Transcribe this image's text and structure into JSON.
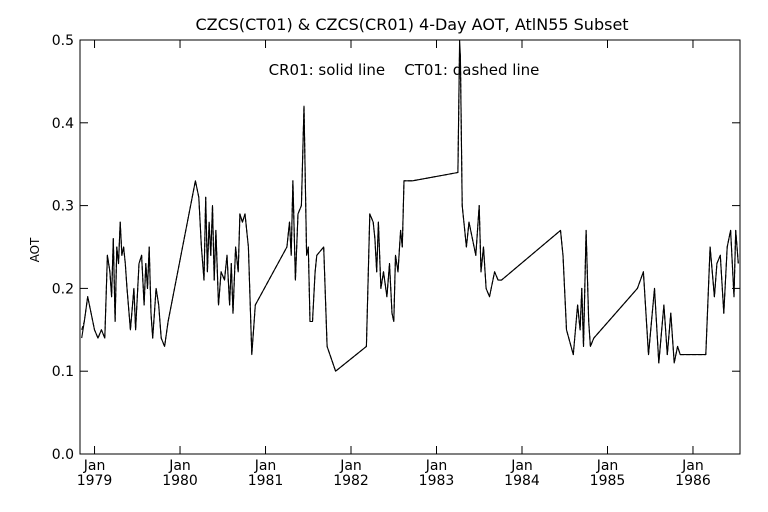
{
  "chart_data": {
    "type": "line",
    "title": "CZCS(CT01) & CZCS(CR01) 4-Day AOT, AtlN55 Subset",
    "annotation": "CR01: solid line    CT01: dashed line",
    "xlabel": "",
    "ylabel": "AOT",
    "xlim": [
      1978.83,
      1986.55
    ],
    "ylim": [
      0.0,
      0.5
    ],
    "yticks": [
      {
        "value": 0.0,
        "label": "0.0"
      },
      {
        "value": 0.1,
        "label": "0.1"
      },
      {
        "value": 0.2,
        "label": "0.2"
      },
      {
        "value": 0.3,
        "label": "0.3"
      },
      {
        "value": 0.4,
        "label": "0.4"
      },
      {
        "value": 0.5,
        "label": "0.5"
      }
    ],
    "xticks": [
      {
        "value": 1979.0,
        "month": "Jan",
        "year": "1979"
      },
      {
        "value": 1980.0,
        "month": "Jan",
        "year": "1980"
      },
      {
        "value": 1981.0,
        "month": "Jan",
        "year": "1981"
      },
      {
        "value": 1982.0,
        "month": "Jan",
        "year": "1982"
      },
      {
        "value": 1983.0,
        "month": "Jan",
        "year": "1983"
      },
      {
        "value": 1984.0,
        "month": "Jan",
        "year": "1984"
      },
      {
        "value": 1985.0,
        "month": "Jan",
        "year": "1985"
      },
      {
        "value": 1986.0,
        "month": "Jan",
        "year": "1986"
      }
    ],
    "grid": false,
    "colors": {
      "line": "#000000",
      "axes": "#000000",
      "background": "#ffffff"
    },
    "series": [
      {
        "name": "CR01",
        "style": "solid",
        "x": [
          1978.85,
          1978.88,
          1978.92,
          1978.96,
          1979.0,
          1979.04,
          1979.08,
          1979.12,
          1979.15,
          1979.18,
          1979.2,
          1979.22,
          1979.24,
          1979.26,
          1979.28,
          1979.3,
          1979.32,
          1979.34,
          1979.36,
          1979.38,
          1979.42,
          1979.46,
          1979.48,
          1979.52,
          1979.55,
          1979.58,
          1979.6,
          1979.62,
          1979.64,
          1979.66,
          1979.68,
          1979.72,
          1979.75,
          1979.78,
          1979.82,
          1979.86,
          1980.18,
          1980.22,
          1980.25,
          1980.28,
          1980.3,
          1980.32,
          1980.34,
          1980.36,
          1980.38,
          1980.4,
          1980.42,
          1980.45,
          1980.48,
          1980.52,
          1980.55,
          1980.58,
          1980.6,
          1980.62,
          1980.65,
          1980.68,
          1980.7,
          1980.73,
          1980.76,
          1980.8,
          1980.84,
          1980.88,
          1981.25,
          1981.28,
          1981.3,
          1981.32,
          1981.35,
          1981.38,
          1981.42,
          1981.45,
          1981.48,
          1981.5,
          1981.52,
          1981.55,
          1981.58,
          1981.6,
          1981.68,
          1981.72,
          1981.82,
          1982.18,
          1982.22,
          1982.26,
          1982.28,
          1982.3,
          1982.32,
          1982.35,
          1982.38,
          1982.42,
          1982.45,
          1982.48,
          1982.5,
          1982.52,
          1982.55,
          1982.58,
          1982.6,
          1982.62,
          1982.64,
          1982.67,
          1982.7,
          1982.72,
          1983.25,
          1983.27,
          1983.28,
          1983.3,
          1983.32,
          1983.35,
          1983.38,
          1983.42,
          1983.46,
          1983.5,
          1983.52,
          1983.55,
          1983.58,
          1983.62,
          1983.68,
          1983.72,
          1983.76,
          1984.45,
          1984.48,
          1984.52,
          1984.6,
          1984.65,
          1984.68,
          1984.7,
          1984.72,
          1984.75,
          1984.78,
          1984.8,
          1984.84,
          1985.35,
          1985.42,
          1985.48,
          1985.55,
          1985.6,
          1985.66,
          1985.7,
          1985.74,
          1985.78,
          1985.82,
          1985.85,
          1986.15,
          1986.2,
          1986.25,
          1986.28,
          1986.32,
          1986.36,
          1986.4,
          1986.44,
          1986.48,
          1986.5,
          1986.53
        ],
        "values": [
          0.14,
          0.16,
          0.19,
          0.17,
          0.15,
          0.14,
          0.15,
          0.14,
          0.24,
          0.22,
          0.19,
          0.26,
          0.16,
          0.25,
          0.23,
          0.28,
          0.24,
          0.25,
          0.23,
          0.2,
          0.15,
          0.2,
          0.15,
          0.23,
          0.24,
          0.18,
          0.23,
          0.2,
          0.25,
          0.17,
          0.14,
          0.2,
          0.18,
          0.14,
          0.13,
          0.16,
          0.33,
          0.31,
          0.25,
          0.21,
          0.31,
          0.22,
          0.28,
          0.24,
          0.3,
          0.21,
          0.27,
          0.18,
          0.22,
          0.21,
          0.24,
          0.18,
          0.23,
          0.17,
          0.25,
          0.22,
          0.29,
          0.28,
          0.29,
          0.25,
          0.12,
          0.18,
          0.25,
          0.28,
          0.24,
          0.33,
          0.21,
          0.29,
          0.3,
          0.42,
          0.24,
          0.25,
          0.16,
          0.16,
          0.22,
          0.24,
          0.25,
          0.13,
          0.1,
          0.13,
          0.29,
          0.28,
          0.26,
          0.22,
          0.28,
          0.2,
          0.22,
          0.19,
          0.23,
          0.17,
          0.16,
          0.24,
          0.22,
          0.27,
          0.25,
          0.33,
          0.33,
          0.33,
          0.33,
          0.33,
          0.34,
          0.5,
          0.48,
          0.3,
          0.28,
          0.25,
          0.28,
          0.26,
          0.24,
          0.3,
          0.22,
          0.25,
          0.2,
          0.19,
          0.22,
          0.21,
          0.21,
          0.27,
          0.24,
          0.15,
          0.12,
          0.18,
          0.15,
          0.2,
          0.13,
          0.27,
          0.16,
          0.13,
          0.14,
          0.2,
          0.22,
          0.12,
          0.2,
          0.11,
          0.18,
          0.12,
          0.17,
          0.11,
          0.13,
          0.12,
          0.12,
          0.25,
          0.19,
          0.23,
          0.24,
          0.17,
          0.25,
          0.27,
          0.19,
          0.27,
          0.23
        ]
      },
      {
        "name": "CT01",
        "style": "dashed",
        "x": [
          1978.85,
          1978.88,
          1978.92,
          1978.96,
          1979.0,
          1979.04,
          1979.08,
          1979.12,
          1979.15,
          1979.18,
          1979.2,
          1979.22,
          1979.24,
          1979.26,
          1979.28,
          1979.3,
          1979.32,
          1979.34,
          1979.36,
          1979.38,
          1979.42,
          1979.46,
          1979.48,
          1979.52,
          1979.55,
          1979.58,
          1979.6,
          1979.62,
          1979.64,
          1979.66,
          1979.68,
          1979.72,
          1979.75,
          1979.78,
          1979.82,
          1979.86,
          1980.18,
          1980.22,
          1980.25,
          1980.28,
          1980.3,
          1980.32,
          1980.34,
          1980.36,
          1980.38,
          1980.4,
          1980.42,
          1980.45,
          1980.48,
          1980.52,
          1980.55,
          1980.58,
          1980.6,
          1980.62,
          1980.65,
          1980.68,
          1980.7,
          1980.73,
          1980.76,
          1980.8,
          1980.84,
          1980.88,
          1981.25,
          1981.28,
          1981.3,
          1981.32,
          1981.35,
          1981.38,
          1981.42,
          1981.45,
          1981.48,
          1981.5,
          1981.52,
          1981.55,
          1981.58,
          1981.6,
          1981.68,
          1981.72,
          1981.82,
          1982.18,
          1982.22,
          1982.26,
          1982.28,
          1982.3,
          1982.32,
          1982.35,
          1982.38,
          1982.42,
          1982.45,
          1982.48,
          1982.5,
          1982.52,
          1982.55,
          1982.58,
          1982.6,
          1982.62,
          1982.64,
          1982.67,
          1982.7,
          1982.72,
          1983.25,
          1983.27,
          1983.28,
          1983.3,
          1983.32,
          1983.35,
          1983.38,
          1983.42,
          1983.46,
          1983.5,
          1983.52,
          1983.55,
          1983.58,
          1983.62,
          1983.68,
          1983.72,
          1983.76,
          1984.45,
          1984.48,
          1984.52,
          1984.6,
          1984.65,
          1984.68,
          1984.7,
          1984.72,
          1984.75,
          1984.78,
          1984.8,
          1984.84,
          1985.35,
          1985.42,
          1985.48,
          1985.55,
          1985.6,
          1985.66,
          1985.7,
          1985.74,
          1985.78,
          1985.82,
          1985.85,
          1986.15,
          1986.2,
          1986.25,
          1986.28,
          1986.32,
          1986.36,
          1986.4,
          1986.44,
          1986.48,
          1986.5,
          1986.53
        ],
        "values": [
          0.15,
          0.16,
          0.19,
          0.17,
          0.15,
          0.14,
          0.15,
          0.14,
          0.24,
          0.22,
          0.19,
          0.26,
          0.16,
          0.25,
          0.23,
          0.28,
          0.24,
          0.25,
          0.23,
          0.2,
          0.15,
          0.2,
          0.15,
          0.23,
          0.24,
          0.18,
          0.23,
          0.2,
          0.25,
          0.17,
          0.14,
          0.2,
          0.18,
          0.14,
          0.13,
          0.16,
          0.33,
          0.31,
          0.25,
          0.21,
          0.31,
          0.22,
          0.28,
          0.24,
          0.3,
          0.21,
          0.27,
          0.18,
          0.22,
          0.21,
          0.24,
          0.18,
          0.23,
          0.17,
          0.25,
          0.22,
          0.29,
          0.28,
          0.29,
          0.25,
          0.12,
          0.18,
          0.25,
          0.28,
          0.24,
          0.33,
          0.21,
          0.29,
          0.3,
          0.42,
          0.24,
          0.25,
          0.16,
          0.16,
          0.22,
          0.24,
          0.25,
          0.13,
          0.1,
          0.13,
          0.29,
          0.28,
          0.26,
          0.22,
          0.28,
          0.2,
          0.22,
          0.19,
          0.23,
          0.17,
          0.16,
          0.24,
          0.22,
          0.27,
          0.25,
          0.33,
          0.33,
          0.33,
          0.33,
          0.33,
          0.34,
          0.49,
          0.48,
          0.3,
          0.28,
          0.25,
          0.28,
          0.26,
          0.24,
          0.3,
          0.22,
          0.25,
          0.2,
          0.19,
          0.22,
          0.21,
          0.21,
          0.27,
          0.24,
          0.15,
          0.12,
          0.18,
          0.15,
          0.2,
          0.13,
          0.27,
          0.16,
          0.13,
          0.14,
          0.2,
          0.22,
          0.12,
          0.2,
          0.11,
          0.18,
          0.12,
          0.17,
          0.11,
          0.13,
          0.12,
          0.12,
          0.25,
          0.19,
          0.23,
          0.24,
          0.17,
          0.25,
          0.27,
          0.19,
          0.27,
          0.23
        ]
      }
    ]
  }
}
